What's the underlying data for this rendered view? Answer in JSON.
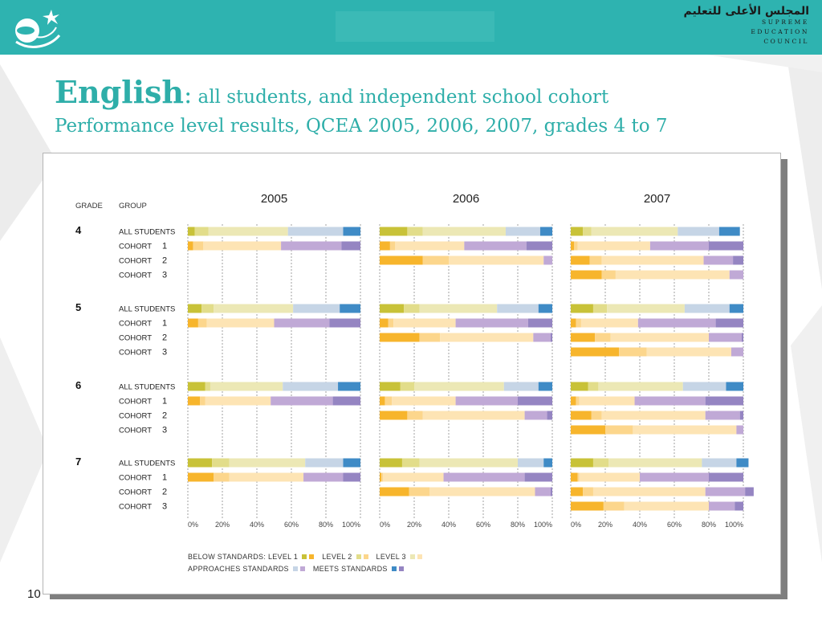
{
  "header": {
    "council_ar": "المجلس الأعلى للتعليم",
    "council_en": [
      "SUPREME",
      "EDUCATION",
      "COUNCIL"
    ],
    "logo_icon": "supreme-education-council-logo-icon"
  },
  "slide": {
    "title_main": "English",
    "title_colon": ":",
    "title_rest": " all students, and independent school cohort",
    "subtitle": "Performance level results, QCEA 2005, 2006, 2007, grades 4 to 7",
    "page_number": "10"
  },
  "colors": {
    "below_l1": "#f7b52c",
    "below_l2": "#fcd68c",
    "below_l3": "#fde4b4",
    "approach_l1": "#c8c238",
    "approach_l2": "#e2dd8a",
    "approach_l3": "#ece8b5",
    "meets_l1": "#c6d5e6",
    "meets_l2": "#c0a9d6",
    "meets_l3": "#a38ec6",
    "meets_top1": "#3f8bc6",
    "meets_top2": "#9585c2",
    "meets_top3": "#b6a6d3"
  },
  "chart_data": {
    "type": "bar",
    "orientation": "horizontal-stacked-100",
    "column_header_grade": "GRADE",
    "column_header_group": "GROUP",
    "years": [
      "2005",
      "2006",
      "2007"
    ],
    "x_ticks": [
      "0%",
      "20%",
      "40%",
      "60%",
      "80%",
      "100%"
    ],
    "xlim": [
      0,
      100
    ],
    "grid": "vertical-dashed",
    "legend_position": "bottom-left",
    "segment_order": [
      "Level 1",
      "Level 2",
      "Level 3",
      "Approaches standards",
      "Meets standards"
    ],
    "legend": [
      [
        {
          "label": "BELOW STANDARDS: LEVEL 1",
          "colors": [
            "#c8c238",
            "#f7b52c"
          ]
        },
        {
          "label": "LEVEL 2",
          "colors": [
            "#e2dd8a",
            "#fcd68c"
          ]
        },
        {
          "label": "LEVEL 3",
          "colors": [
            "#ece8b5",
            "#fde4b4"
          ]
        }
      ],
      [
        {
          "label": "APPROACHES STANDARDS",
          "colors": [
            "#c6d5e6",
            "#c0a9d6"
          ]
        },
        {
          "label": "MEETS STANDARDS",
          "colors": [
            "#3f8bc6",
            "#9585c2"
          ]
        }
      ]
    ],
    "grades": [
      {
        "grade": "4",
        "rows": [
          {
            "group": "ALL STUDENTS",
            "num": "",
            "type": "all",
            "values": {
              "2005": [
                4,
                8,
                46,
                32,
                10
              ],
              "2006": [
                16,
                9,
                48,
                20,
                7
              ],
              "2007": [
                7,
                5,
                50,
                24,
                12
              ]
            }
          },
          {
            "group": "COHORT",
            "num": "1",
            "type": "cohort",
            "values": {
              "2005": [
                3,
                6,
                45,
                35,
                11
              ],
              "2006": [
                6,
                3,
                40,
                36,
                15
              ],
              "2007": [
                2,
                2,
                42,
                34,
                20
              ]
            }
          },
          {
            "group": "COHORT",
            "num": "2",
            "type": "cohort",
            "values": {
              "2005": null,
              "2006": [
                25,
                15,
                55,
                5,
                0
              ],
              "2007": [
                11,
                7,
                59,
                17,
                6
              ]
            }
          },
          {
            "group": "COHORT",
            "num": "3",
            "type": "cohort",
            "values": {
              "2005": null,
              "2006": null,
              "2007": [
                18,
                8,
                66,
                8,
                0
              ]
            }
          }
        ]
      },
      {
        "grade": "5",
        "rows": [
          {
            "group": "ALL STUDENTS",
            "num": "",
            "type": "all",
            "values": {
              "2005": [
                8,
                7,
                46,
                27,
                12
              ],
              "2006": [
                14,
                9,
                45,
                24,
                8
              ],
              "2007": [
                13,
                8,
                45,
                26,
                8
              ]
            }
          },
          {
            "group": "COHORT",
            "num": "1",
            "type": "cohort",
            "values": {
              "2005": [
                6,
                5,
                39,
                32,
                18
              ],
              "2006": [
                5,
                3,
                36,
                42,
                14
              ],
              "2007": [
                3,
                3,
                33,
                45,
                16
              ]
            }
          },
          {
            "group": "COHORT",
            "num": "2",
            "type": "cohort",
            "values": {
              "2005": null,
              "2006": [
                23,
                12,
                54,
                10,
                1
              ],
              "2007": [
                14,
                9,
                57,
                19,
                1
              ]
            }
          },
          {
            "group": "COHORT",
            "num": "3",
            "type": "cohort",
            "values": {
              "2005": null,
              "2006": null,
              "2007": [
                28,
                16,
                49,
                7,
                0
              ]
            }
          }
        ]
      },
      {
        "grade": "6",
        "rows": [
          {
            "group": "ALL STUDENTS",
            "num": "",
            "type": "all",
            "values": {
              "2005": [
                10,
                3,
                42,
                32,
                13
              ],
              "2006": [
                12,
                8,
                52,
                20,
                8
              ],
              "2007": [
                10,
                6,
                49,
                25,
                10
              ]
            }
          },
          {
            "group": "COHORT",
            "num": "1",
            "type": "cohort",
            "values": {
              "2005": [
                7,
                3,
                38,
                36,
                16
              ],
              "2006": [
                3,
                4,
                37,
                36,
                20
              ],
              "2007": [
                3,
                2,
                32,
                41,
                22
              ]
            }
          },
          {
            "group": "COHORT",
            "num": "2",
            "type": "cohort",
            "values": {
              "2005": null,
              "2006": [
                16,
                9,
                59,
                13,
                3
              ],
              "2007": [
                12,
                6,
                60,
                20,
                2
              ]
            }
          },
          {
            "group": "COHORT",
            "num": "3",
            "type": "cohort",
            "values": {
              "2005": null,
              "2006": null,
              "2007": [
                20,
                16,
                60,
                4,
                0
              ]
            }
          }
        ]
      },
      {
        "grade": "7",
        "rows": [
          {
            "group": "ALL STUDENTS",
            "num": "",
            "type": "all",
            "values": {
              "2005": [
                14,
                10,
                44,
                22,
                10
              ],
              "2006": [
                13,
                10,
                57,
                15,
                5
              ],
              "2007": [
                13,
                9,
                54,
                20,
                7
              ]
            }
          },
          {
            "group": "COHORT",
            "num": "1",
            "type": "cohort",
            "values": {
              "2005": [
                15,
                9,
                43,
                23,
                10
              ],
              "2006": [
                1,
                1,
                35,
                47,
                16
              ],
              "2007": [
                4,
                1,
                35,
                40,
                20
              ]
            }
          },
          {
            "group": "COHORT",
            "num": "2",
            "type": "cohort",
            "values": {
              "2005": null,
              "2006": [
                17,
                12,
                61,
                9,
                1
              ],
              "2007": [
                7,
                6,
                65,
                23,
                5
              ]
            }
          },
          {
            "group": "COHORT",
            "num": "3",
            "type": "cohort",
            "values": {
              "2005": null,
              "2006": null,
              "2007": [
                19,
                12,
                49,
                15,
                5
              ]
            }
          }
        ]
      }
    ]
  }
}
